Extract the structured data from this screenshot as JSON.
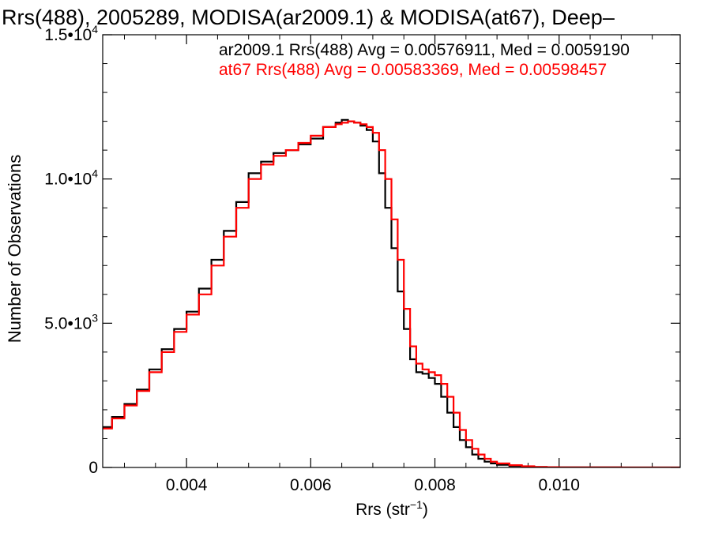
{
  "chart_data": {
    "type": "line",
    "title": "Rrs(488), 2005289, MODISA(ar2009.1) & MODISA(at67), Deep–",
    "xlabel": "Rrs (str⁻¹)",
    "ylabel": "Number of Observations",
    "xlim": [
      0.00265,
      0.01195
    ],
    "ylim": [
      0,
      15000
    ],
    "x_ticks": [
      0.004,
      0.006,
      0.008,
      0.01
    ],
    "x_tick_labels": [
      "0.004",
      "0.006",
      "0.008",
      "0.010"
    ],
    "y_ticks": [
      0,
      5000,
      10000,
      15000
    ],
    "y_tick_labels": [
      {
        "mant": "0",
        "exp": ""
      },
      {
        "mant": "5.0•10",
        "exp": "3"
      },
      {
        "mant": "1.0•10",
        "exp": "4"
      },
      {
        "mant": "1.5•10",
        "exp": "4"
      }
    ],
    "grid": false,
    "legend_position": "top-right",
    "series": [
      {
        "name": "ar2009.1 Rrs(488) Avg = 0.00576911, Med = 0.0059190",
        "color": "#000000",
        "x": [
          0.00265,
          0.0028,
          0.003,
          0.0032,
          0.0034,
          0.0036,
          0.0038,
          0.004,
          0.0042,
          0.0044,
          0.0046,
          0.0048,
          0.005,
          0.0052,
          0.0054,
          0.0056,
          0.0058,
          0.006,
          0.0062,
          0.0064,
          0.0065,
          0.0066,
          0.0067,
          0.0068,
          0.0069,
          0.007,
          0.0071,
          0.0072,
          0.0073,
          0.0074,
          0.0075,
          0.0076,
          0.0077,
          0.0078,
          0.0079,
          0.008,
          0.0081,
          0.0082,
          0.0083,
          0.0084,
          0.0085,
          0.0086,
          0.0087,
          0.0088,
          0.0089,
          0.009,
          0.0092,
          0.0094,
          0.0096,
          0.0098,
          0.01,
          0.0103,
          0.0106,
          0.011,
          0.0115,
          0.01195
        ],
        "y": [
          1400,
          1750,
          2200,
          2700,
          3400,
          4100,
          4800,
          5400,
          6200,
          7200,
          8200,
          9200,
          10200,
          10600,
          10900,
          11000,
          11200,
          11400,
          11800,
          11950,
          12050,
          12000,
          11950,
          11850,
          11700,
          11300,
          10200,
          9000,
          7600,
          6100,
          4800,
          3750,
          3300,
          3250,
          3100,
          2900,
          2450,
          1900,
          1400,
          950,
          700,
          450,
          300,
          200,
          140,
          90,
          50,
          30,
          15,
          10,
          5,
          3,
          2,
          0,
          0,
          0
        ]
      },
      {
        "name": "at67 Rrs(488) Avg = 0.00583369, Med = 0.00598457",
        "color": "#ff0000",
        "x": [
          0.00265,
          0.0028,
          0.003,
          0.0032,
          0.0034,
          0.0036,
          0.0038,
          0.004,
          0.0042,
          0.0044,
          0.0046,
          0.0048,
          0.005,
          0.0052,
          0.0054,
          0.0056,
          0.0058,
          0.006,
          0.0062,
          0.0064,
          0.0065,
          0.0066,
          0.0067,
          0.0068,
          0.0069,
          0.007,
          0.0071,
          0.0072,
          0.0073,
          0.0074,
          0.0075,
          0.0076,
          0.0077,
          0.0078,
          0.0079,
          0.008,
          0.0081,
          0.0082,
          0.0083,
          0.0084,
          0.0085,
          0.0086,
          0.0087,
          0.0088,
          0.0089,
          0.009,
          0.0092,
          0.0094,
          0.0096,
          0.0098,
          0.01,
          0.0103,
          0.0106,
          0.011,
          0.0115,
          0.01195
        ],
        "y": [
          1350,
          1700,
          2150,
          2650,
          3300,
          4000,
          4700,
          5300,
          6000,
          7000,
          8000,
          9000,
          10000,
          10500,
          10800,
          11000,
          11250,
          11500,
          11800,
          11900,
          11950,
          12000,
          11950,
          11900,
          11800,
          11600,
          11000,
          10000,
          8600,
          7200,
          5500,
          4200,
          3600,
          3400,
          3300,
          3200,
          2900,
          2450,
          1900,
          1300,
          950,
          650,
          450,
          300,
          200,
          140,
          80,
          40,
          20,
          10,
          6,
          3,
          2,
          1,
          0,
          0
        ]
      }
    ]
  }
}
